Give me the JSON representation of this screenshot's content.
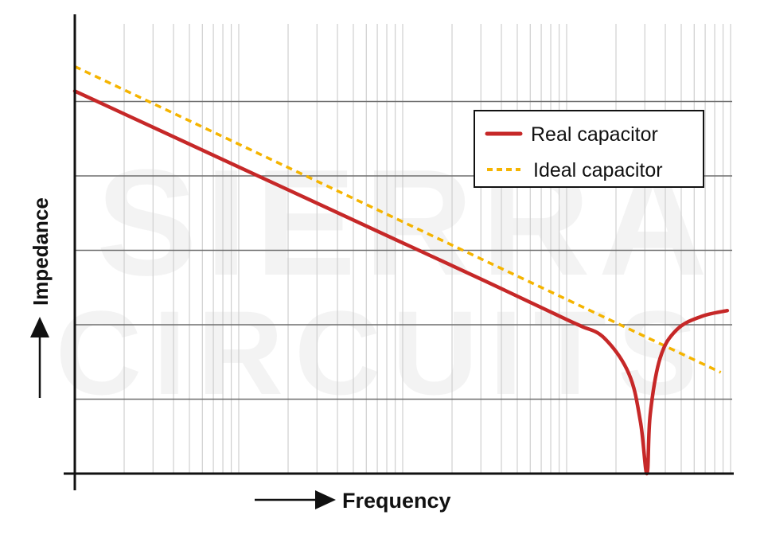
{
  "chart_data": {
    "type": "line",
    "title": "",
    "xlabel": "Frequency",
    "ylabel": "Impedance",
    "x_scale": "log",
    "y_scale": "log",
    "x_decades": 4,
    "xlim": [
      0,
      4
    ],
    "ylim": [
      0,
      6.17
    ],
    "y_gridlines": [
      1,
      2,
      3,
      4,
      5
    ],
    "grid": true,
    "tick_labels": "none",
    "legend_position": "top-right",
    "watermark": [
      "SIERRA",
      "CIRCUITS"
    ],
    "series": [
      {
        "name": "Real capacitor",
        "color": "#c62828",
        "style": "solid",
        "x": [
          0,
          0.5,
          1,
          1.5,
          2,
          2.5,
          3,
          3.09,
          3.23,
          3.38,
          3.45,
          3.49,
          3.51,
          3.57,
          3.67,
          3.82,
          3.98
        ],
        "y": [
          5.14,
          4.63,
          4.12,
          3.61,
          3.1,
          2.59,
          2.07,
          1.98,
          1.82,
          1.34,
          0.7,
          0,
          0.8,
          1.55,
          1.93,
          2.11,
          2.19
        ]
      },
      {
        "name": "Ideal capacitor",
        "color": "#f5b400",
        "style": "dashed",
        "x": [
          0,
          3.94
        ],
        "y": [
          5.47,
          1.36
        ]
      }
    ]
  }
}
